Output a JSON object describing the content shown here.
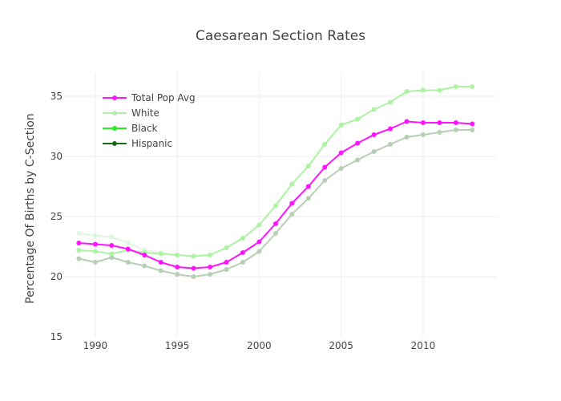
{
  "chart_data": {
    "type": "line",
    "title": "Caesarean Section Rates",
    "xlabel": "",
    "ylabel": "Percentage Of Births by C-Section",
    "xlim": [
      1988.1,
      2014.5
    ],
    "ylim": [
      15,
      37
    ],
    "x_ticks": [
      1990,
      1995,
      2000,
      2005,
      2010
    ],
    "y_ticks": [
      15,
      20,
      25,
      30,
      35
    ],
    "grid": true,
    "legend_position": "top-left",
    "x": [
      1989,
      1990,
      1991,
      1992,
      1993,
      1994,
      1995,
      1996,
      1997,
      1998,
      1999,
      2000,
      2001,
      2002,
      2003,
      2004,
      2005,
      2006,
      2007,
      2008,
      2009,
      2010,
      2011,
      2012,
      2013
    ],
    "series": [
      {
        "name": "Total Pop Avg",
        "color": "#ff14ff",
        "opacity": 1,
        "values": [
          22.8,
          22.7,
          22.6,
          22.3,
          21.8,
          21.2,
          20.8,
          20.7,
          20.8,
          21.2,
          22.0,
          22.9,
          24.4,
          26.1,
          27.5,
          29.1,
          30.3,
          31.1,
          31.8,
          32.3,
          32.9,
          32.8,
          32.8,
          32.8,
          32.7
        ]
      },
      {
        "name": "White",
        "color": "#aef2a4",
        "opacity": 1,
        "values": [
          22.2,
          22.1,
          21.9,
          22.2,
          22.0,
          21.9,
          21.8,
          21.7,
          21.8,
          22.4,
          23.2,
          24.3,
          25.9,
          27.7,
          29.2,
          31.0,
          32.6,
          33.1,
          33.9,
          34.5,
          35.4,
          35.5,
          35.5,
          35.8,
          35.8
        ]
      },
      {
        "name": "Black",
        "color": "#a4e8a4",
        "opacity": 0.35,
        "values": [
          23.6,
          23.4,
          23.3,
          22.8,
          22.2,
          22.0,
          21.8,
          21.7,
          21.8,
          22.4,
          23.2,
          24.3,
          25.9,
          27.7,
          29.2,
          31.0,
          32.6,
          33.1,
          33.9,
          34.5,
          35.4,
          35.5,
          35.5,
          35.8,
          35.8
        ]
      },
      {
        "name": "Hispanic",
        "color": "#b7cfb4",
        "opacity": 1,
        "values": [
          21.5,
          21.2,
          21.6,
          21.2,
          20.9,
          20.5,
          20.2,
          20.0,
          20.2,
          20.6,
          21.2,
          22.1,
          23.6,
          25.2,
          26.5,
          28.0,
          29.0,
          29.7,
          30.4,
          31.0,
          31.6,
          31.8,
          32.0,
          32.2,
          32.2
        ]
      }
    ],
    "legend": [
      {
        "name": "Total Pop Avg",
        "color": "#ff14ff"
      },
      {
        "name": "White",
        "color": "#b7e8b0"
      },
      {
        "name": "Black",
        "color": "#22ee22"
      },
      {
        "name": "Hispanic",
        "color": "#1a6b1a"
      }
    ],
    "draw_order": [
      "Black",
      "Hispanic",
      "White",
      "Total Pop Avg"
    ]
  }
}
